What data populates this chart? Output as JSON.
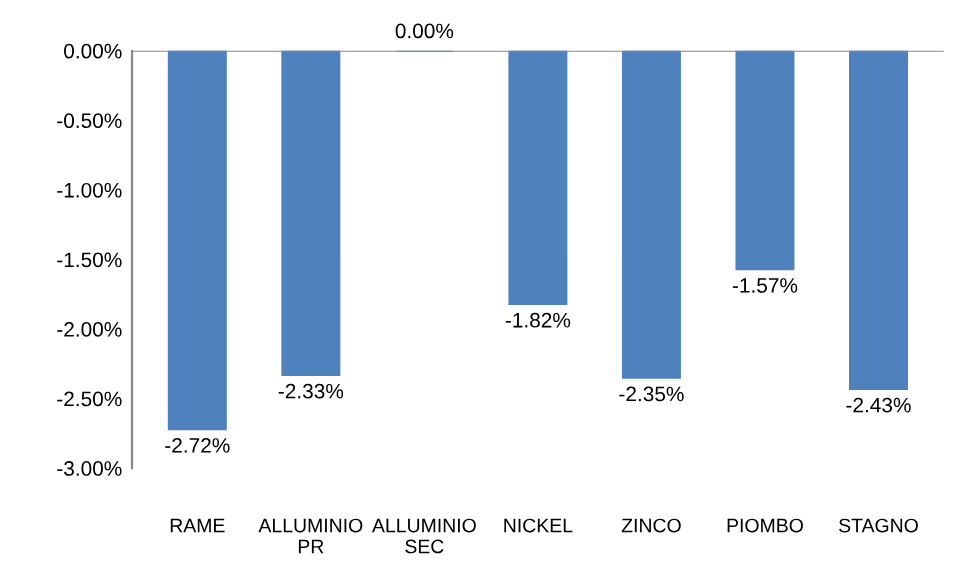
{
  "chart_data": {
    "type": "bar",
    "categories": [
      "RAME",
      "ALLUMINIO\nPR",
      "ALLUMINIO\nSEC",
      "NICKEL",
      "ZINCO",
      "PIOMBO",
      "STAGNO"
    ],
    "values": [
      -2.72,
      -2.33,
      0.0,
      -1.82,
      -2.35,
      -1.57,
      -2.43
    ],
    "value_labels": [
      "-2.72%",
      "-2.33%",
      "0.00%",
      "-1.82%",
      "-2.35%",
      "-1.57%",
      "-2.43%"
    ],
    "color": "#4f81bd",
    "ylim": [
      -3.0,
      0.0
    ],
    "yticks": [
      {
        "value": 0.0,
        "label": "0.00%"
      },
      {
        "value": -0.5,
        "label": "-0.50%"
      },
      {
        "value": -1.0,
        "label": "-1.00%"
      },
      {
        "value": -1.5,
        "label": "-1.50%"
      },
      {
        "value": -2.0,
        "label": "-2.00%"
      },
      {
        "value": -2.5,
        "label": "-2.50%"
      },
      {
        "value": -3.0,
        "label": "-3.00%"
      }
    ],
    "grid": false,
    "legend": false
  }
}
